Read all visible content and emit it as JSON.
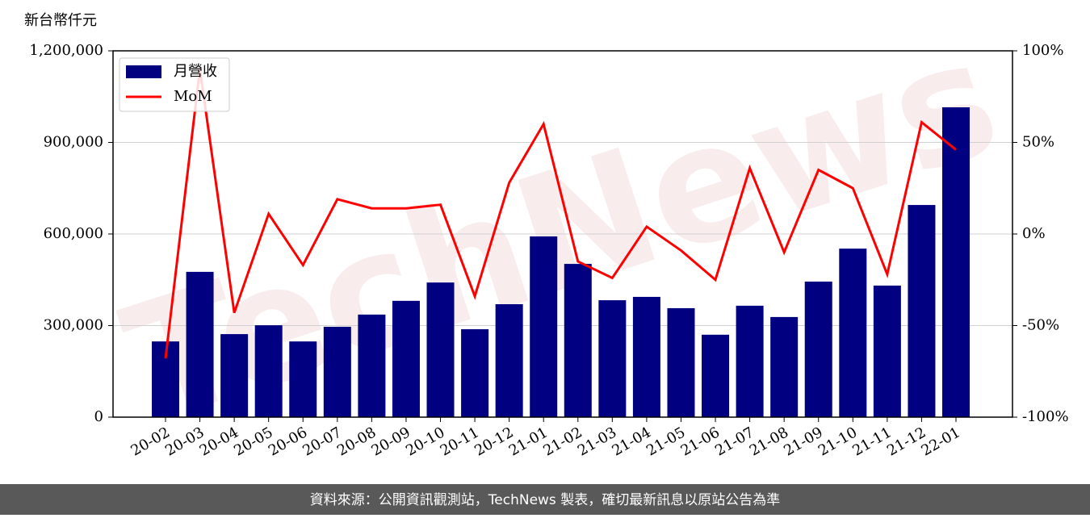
{
  "chart_data": {
    "type": "bar_line",
    "y_label": "新台幣仟元",
    "watermark": "TechNews",
    "categories": [
      "20-02",
      "20-03",
      "20-04",
      "20-05",
      "20-06",
      "20-07",
      "20-08",
      "20-09",
      "20-10",
      "20-11",
      "20-12",
      "21-01",
      "21-02",
      "21-03",
      "21-04",
      "21-05",
      "21-06",
      "21-07",
      "21-08",
      "21-09",
      "21-10",
      "21-11",
      "21-12",
      "22-01"
    ],
    "series": [
      {
        "name": "月營收",
        "type": "bar",
        "color": "#000080",
        "values": [
          248000,
          476000,
          272000,
          301000,
          248000,
          296000,
          336000,
          381000,
          441000,
          288000,
          370000,
          592000,
          502000,
          383000,
          394000,
          357000,
          270000,
          365000,
          328000,
          444000,
          552000,
          431000,
          695000,
          1015000
        ]
      },
      {
        "name": "MoM",
        "type": "line",
        "axis": "y2",
        "color": "#ff0000",
        "values": [
          -68,
          90,
          -43,
          11,
          -17,
          19,
          14,
          14,
          16,
          -34,
          28,
          60,
          -15,
          -24,
          4,
          -9,
          -25,
          36,
          -10,
          35,
          25,
          -22,
          61,
          46
        ]
      }
    ],
    "ylim": [
      0,
      1200000
    ],
    "yticks": [
      0,
      {
        "value": 300000,
        "label": "300,000"
      },
      {
        "value": 600000,
        "label": "600,000"
      },
      {
        "value": 900000,
        "label": "900,000"
      },
      {
        "value": 1200000,
        "label": "1,200,000"
      }
    ],
    "y2lim": [
      -100,
      100
    ],
    "y2ticks": [
      {
        "value": -100,
        "label": "-100%"
      },
      {
        "value": -50,
        "label": "-50%"
      },
      {
        "value": 0,
        "label": "0%"
      },
      {
        "value": 50,
        "label": "50%"
      },
      {
        "value": 100,
        "label": "100%"
      }
    ],
    "grid": true,
    "legend": "upper left",
    "footer": "資料來源：公開資訊觀測站，TechNews 製表，確切最新訊息以原站公告為準"
  }
}
